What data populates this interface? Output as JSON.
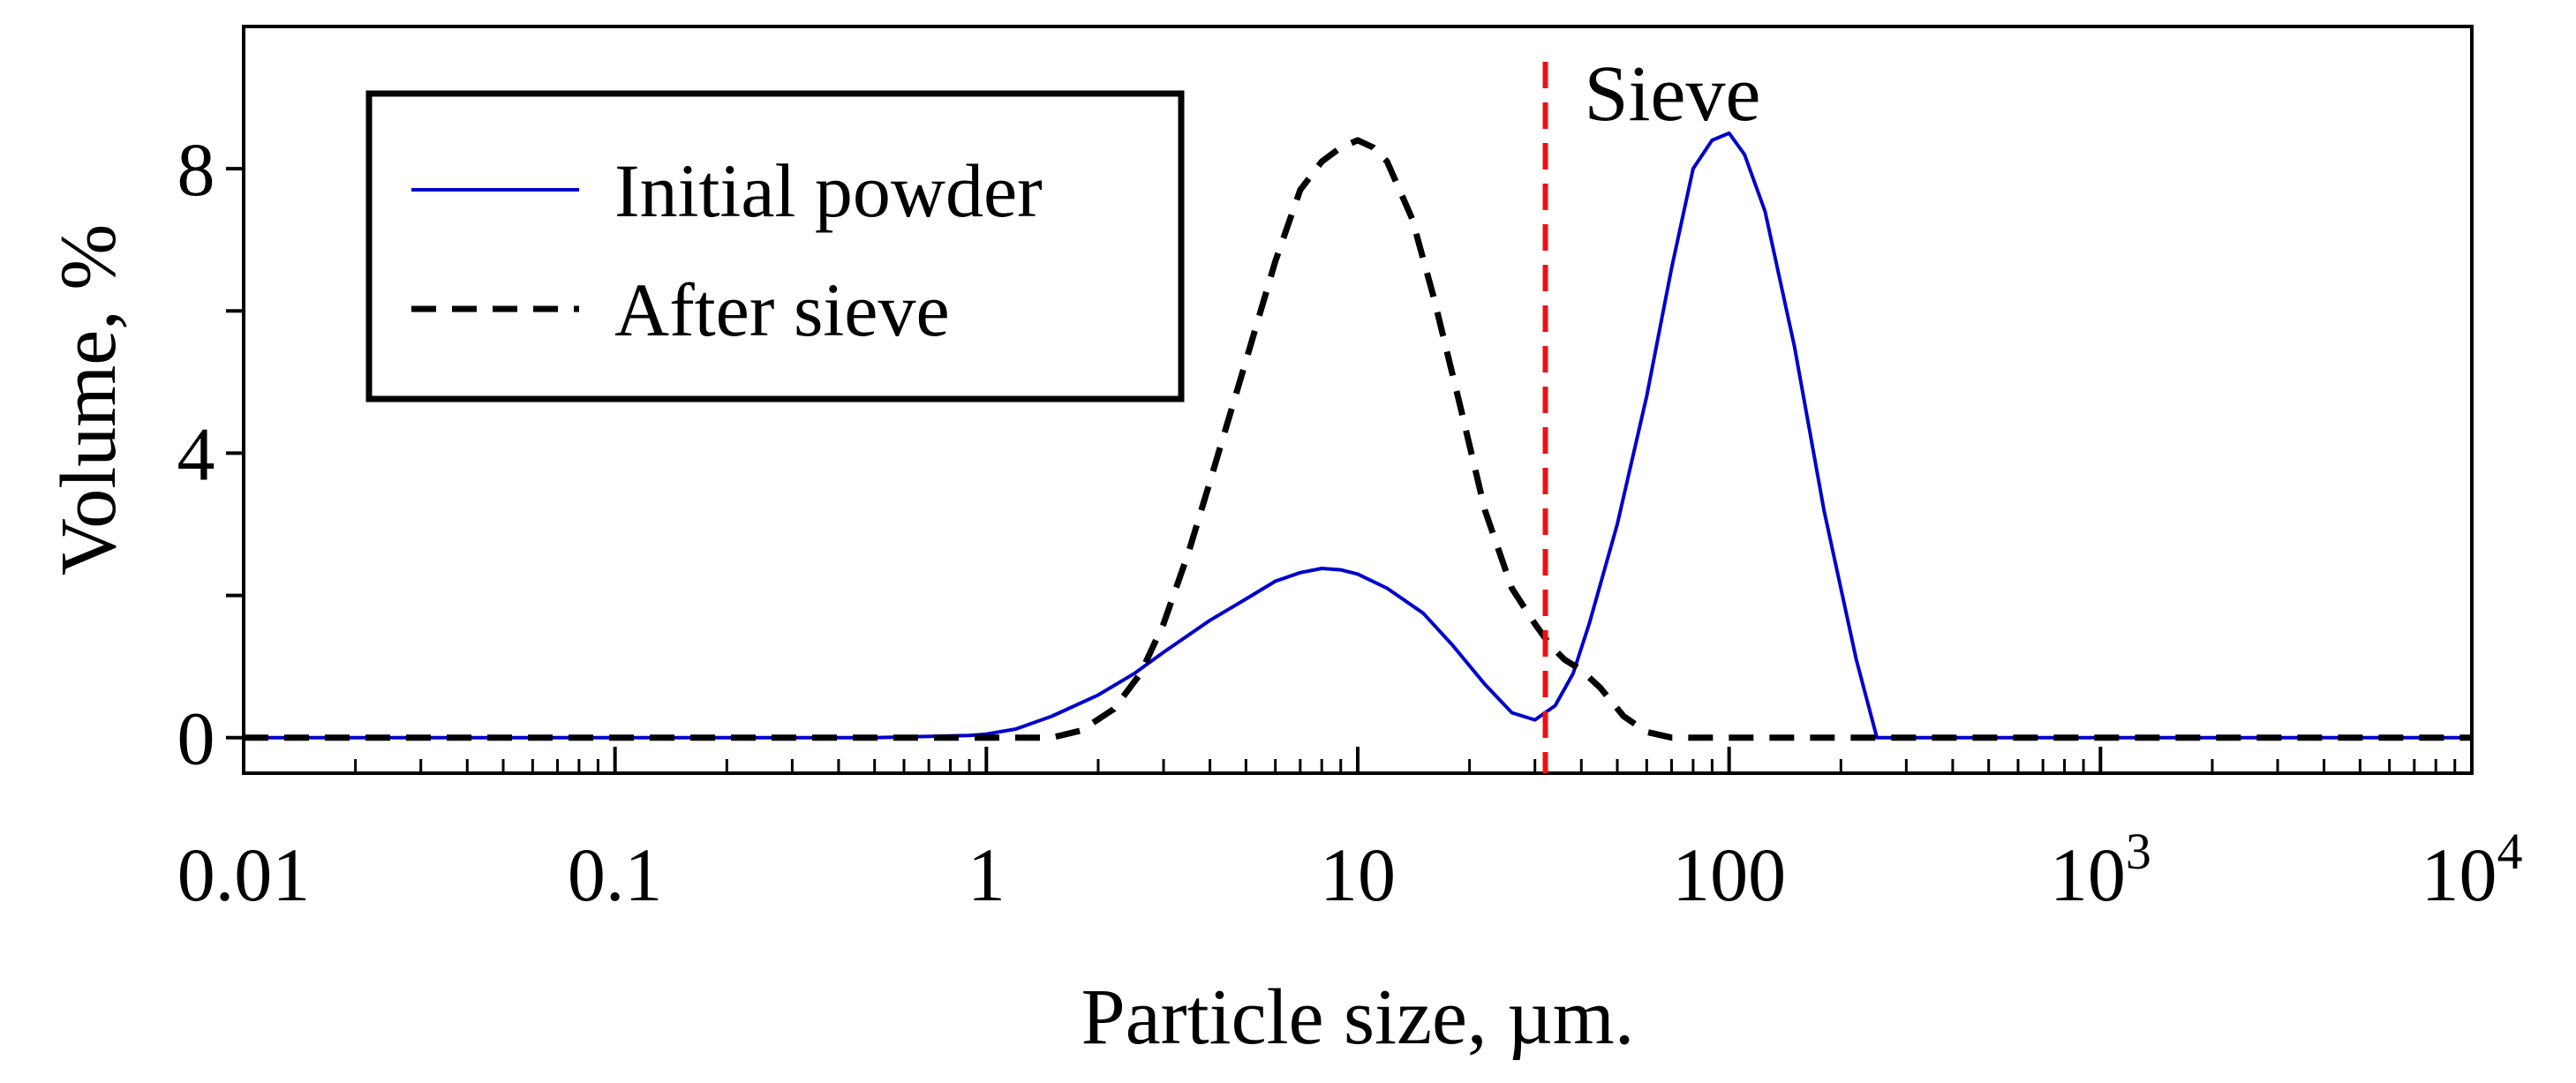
{
  "chart_data": {
    "type": "line",
    "title": "",
    "xlabel": "Particle size, µm.",
    "ylabel": "Volume, %",
    "xscale": "log",
    "xlim": [
      0.01,
      10000
    ],
    "ylim": [
      -0.5,
      10
    ],
    "grid": false,
    "legend_position": "top-left",
    "x_ticks": [
      {
        "value": 0.01,
        "label": "0.01",
        "exp": ""
      },
      {
        "value": 0.1,
        "label": "0.1",
        "exp": ""
      },
      {
        "value": 1,
        "label": "1",
        "exp": ""
      },
      {
        "value": 10,
        "label": "10",
        "exp": ""
      },
      {
        "value": 100,
        "label": "100",
        "exp": ""
      },
      {
        "value": 1000,
        "label": "10",
        "exp": "3"
      },
      {
        "value": 10000,
        "label": "10",
        "exp": "4"
      }
    ],
    "y_ticks": [
      {
        "value": 0,
        "label": "0"
      },
      {
        "value": 2,
        "label": ""
      },
      {
        "value": 4,
        "label": "4"
      },
      {
        "value": 6,
        "label": ""
      },
      {
        "value": 8,
        "label": "8"
      }
    ],
    "series": [
      {
        "name": "Initial powder",
        "color": "#0000cc",
        "style": "solid",
        "x": [
          0.01,
          0.5,
          0.9,
          1.0,
          1.2,
          1.5,
          2.0,
          2.5,
          3.0,
          4.0,
          5.0,
          6.0,
          7.0,
          8.0,
          9.0,
          10.0,
          12.0,
          15.0,
          18.0,
          22.0,
          26.0,
          30.0,
          34.0,
          38.0,
          42.0,
          50.0,
          60.0,
          70.0,
          80.0,
          90.0,
          100.0,
          110.0,
          125.0,
          150.0,
          180.0,
          220.0,
          250.0,
          10000.0
        ],
        "y": [
          0,
          0,
          0.03,
          0.05,
          0.12,
          0.3,
          0.6,
          0.9,
          1.2,
          1.65,
          1.95,
          2.2,
          2.32,
          2.38,
          2.36,
          2.3,
          2.1,
          1.75,
          1.3,
          0.75,
          0.35,
          0.25,
          0.45,
          0.9,
          1.6,
          3.0,
          4.8,
          6.6,
          8.0,
          8.4,
          8.5,
          8.2,
          7.4,
          5.5,
          3.2,
          1.1,
          0,
          0
        ]
      },
      {
        "name": "After sieve",
        "color": "#000000",
        "style": "dashed",
        "x": [
          0.01,
          1.5,
          1.8,
          2.2,
          2.6,
          3.0,
          3.5,
          4.0,
          5.0,
          6.0,
          7.0,
          8.0,
          9.0,
          10.0,
          11.0,
          12.0,
          14.0,
          16.0,
          19.0,
          22.0,
          26.0,
          30.0,
          33.0,
          36.0,
          40.0,
          45.0,
          52.0,
          60.0,
          70.0,
          10000.0
        ],
        "y": [
          0,
          0,
          0.1,
          0.4,
          0.9,
          1.6,
          2.6,
          3.6,
          5.3,
          6.7,
          7.7,
          8.1,
          8.3,
          8.4,
          8.3,
          8.1,
          7.3,
          6.2,
          4.6,
          3.2,
          2.1,
          1.6,
          1.3,
          1.1,
          0.95,
          0.7,
          0.3,
          0.08,
          0,
          0
        ]
      }
    ],
    "annotations": [
      {
        "text": "Sieve",
        "type": "vline",
        "x": 32,
        "color": "#ee1111",
        "style": "dashed"
      }
    ]
  }
}
